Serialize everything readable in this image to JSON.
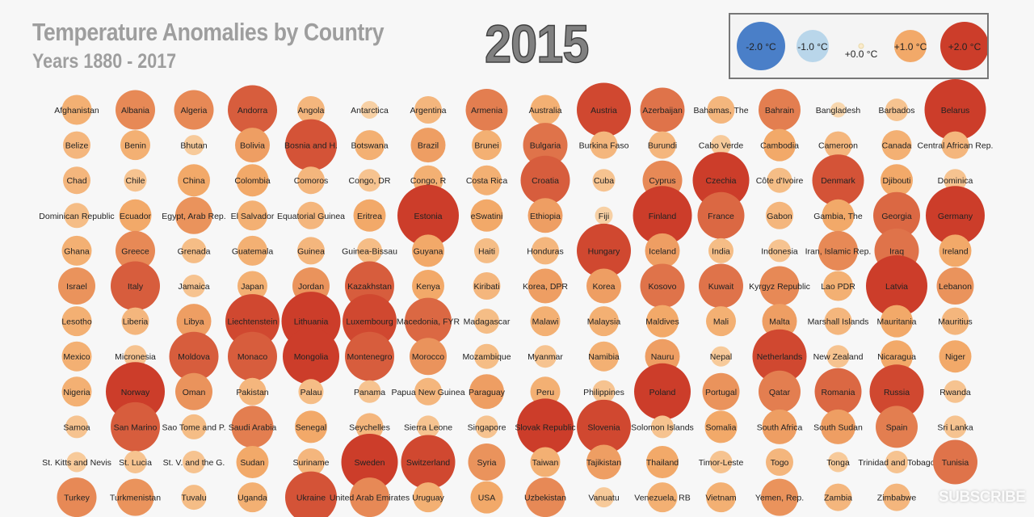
{
  "header": {
    "title": "Temperature Anomalies by Country",
    "subtitle": "Years 1880 - 2017",
    "year": "2015"
  },
  "overlay": {
    "subscribe": "SUBSCRIBE"
  },
  "chart_data": {
    "type": "scatter",
    "encoding": "bubble size and color = temperature anomaly (°C)",
    "title": "Temperature Anomalies by Country",
    "subtitle": "Years 1880 - 2017",
    "year": "2015",
    "color_scale": {
      "-2.0": "#4a7fc8",
      "-1.0": "#b9d6ea",
      "0.0": "#fbeacb",
      "1.0": "#f2a969",
      "2.0": "#cc3d2a"
    },
    "legend": [
      {
        "label": "-2.0 °C",
        "value": -2.0
      },
      {
        "label": "-1.0 °C",
        "value": -1.0
      },
      {
        "label": "+0.0 °C",
        "value": 0.0
      },
      {
        "label": "+1.0 °C",
        "value": 1.0
      },
      {
        "label": "+2.0 °C",
        "value": 2.0
      }
    ],
    "columns": 15,
    "countries": [
      {
        "name": "Afghanistan",
        "anomaly": 0.9
      },
      {
        "name": "Albania",
        "anomaly": 1.3
      },
      {
        "name": "Algeria",
        "anomaly": 1.3
      },
      {
        "name": "Andorra",
        "anomaly": 1.7
      },
      {
        "name": "Angola",
        "anomaly": 0.8
      },
      {
        "name": "Antarctica",
        "anomaly": 0.4
      },
      {
        "name": "Argentina",
        "anomaly": 0.8
      },
      {
        "name": "Armenia",
        "anomaly": 1.4
      },
      {
        "name": "Australia",
        "anomaly": 0.9
      },
      {
        "name": "Austria",
        "anomaly": 1.9
      },
      {
        "name": "Azerbaijan",
        "anomaly": 1.5
      },
      {
        "name": "Bahamas, The",
        "anomaly": 0.8
      },
      {
        "name": "Bahrain",
        "anomaly": 1.4
      },
      {
        "name": "Bangladesh",
        "anomaly": 0.3
      },
      {
        "name": "Barbados",
        "anomaly": 0.6
      },
      {
        "name": "Belarus",
        "anomaly": 2.2
      },
      {
        "name": "Belize",
        "anomaly": 0.8
      },
      {
        "name": "Benin",
        "anomaly": 0.9
      },
      {
        "name": "Bhutan",
        "anomaly": 0.5
      },
      {
        "name": "Bolivia",
        "anomaly": 1.1
      },
      {
        "name": "Bosnia and H.",
        "anomaly": 1.8
      },
      {
        "name": "Botswana",
        "anomaly": 0.9
      },
      {
        "name": "Brazil",
        "anomaly": 1.1
      },
      {
        "name": "Brunei",
        "anomaly": 0.9
      },
      {
        "name": "Bulgaria",
        "anomaly": 1.5
      },
      {
        "name": "Burkina Faso",
        "anomaly": 0.8
      },
      {
        "name": "Burundi",
        "anomaly": 0.8
      },
      {
        "name": "Cabo Verde",
        "anomaly": 0.5
      },
      {
        "name": "Cambodia",
        "anomaly": 1.0
      },
      {
        "name": "Cameroon",
        "anomaly": 0.8
      },
      {
        "name": "Canada",
        "anomaly": 0.9
      },
      {
        "name": "Central African Rep.",
        "anomaly": 0.8
      },
      {
        "name": "Chad",
        "anomaly": 0.8
      },
      {
        "name": "Chile",
        "anomaly": 0.6
      },
      {
        "name": "China",
        "anomaly": 1.0
      },
      {
        "name": "Colombia",
        "anomaly": 1.0
      },
      {
        "name": "Comoros",
        "anomaly": 0.8
      },
      {
        "name": "Congo, DR",
        "anomaly": 0.6
      },
      {
        "name": "Congo, R",
        "anomaly": 0.9
      },
      {
        "name": "Costa Rica",
        "anomaly": 0.9
      },
      {
        "name": "Croatia",
        "anomaly": 1.7
      },
      {
        "name": "Cuba",
        "anomaly": 0.6
      },
      {
        "name": "Cyprus",
        "anomaly": 1.3
      },
      {
        "name": "Czechia",
        "anomaly": 2.0
      },
      {
        "name": "Côte d'Ivoire",
        "anomaly": 0.7
      },
      {
        "name": "Denmark",
        "anomaly": 1.8
      },
      {
        "name": "Djibouti",
        "anomaly": 1.0
      },
      {
        "name": "Dominica",
        "anomaly": 0.6
      },
      {
        "name": "Dominican Republic",
        "anomaly": 0.7
      },
      {
        "name": "Ecuador",
        "anomaly": 1.0
      },
      {
        "name": "Egypt, Arab Rep.",
        "anomaly": 1.2
      },
      {
        "name": "El Salvador",
        "anomaly": 0.9
      },
      {
        "name": "Equatorial Guinea",
        "anomaly": 0.8
      },
      {
        "name": "Eritrea",
        "anomaly": 1.0
      },
      {
        "name": "Estonia",
        "anomaly": 2.2
      },
      {
        "name": "eSwatini",
        "anomaly": 1.0
      },
      {
        "name": "Ethiopia",
        "anomaly": 1.1
      },
      {
        "name": "Fiji",
        "anomaly": 0.4
      },
      {
        "name": "Finland",
        "anomaly": 2.1
      },
      {
        "name": "France",
        "anomaly": 1.6
      },
      {
        "name": "Gabon",
        "anomaly": 0.8
      },
      {
        "name": "Gambia, The",
        "anomaly": 1.0
      },
      {
        "name": "Georgia",
        "anomaly": 1.6
      },
      {
        "name": "Germany",
        "anomaly": 2.1
      },
      {
        "name": "Ghana",
        "anomaly": 0.9
      },
      {
        "name": "Greece",
        "anomaly": 1.3
      },
      {
        "name": "Grenada",
        "anomaly": 0.7
      },
      {
        "name": "Guatemala",
        "anomaly": 0.9
      },
      {
        "name": "Guinea",
        "anomaly": 0.8
      },
      {
        "name": "Guinea-Bissau",
        "anomaly": 0.7
      },
      {
        "name": "Guyana",
        "anomaly": 1.0
      },
      {
        "name": "Haiti",
        "anomaly": 0.7
      },
      {
        "name": "Honduras",
        "anomaly": 0.8
      },
      {
        "name": "Hungary",
        "anomaly": 1.9
      },
      {
        "name": "Iceland",
        "anomaly": 1.1
      },
      {
        "name": "India",
        "anomaly": 0.7
      },
      {
        "name": "Indonesia",
        "anomaly": 0.6
      },
      {
        "name": "Iran, Islamic Rep.",
        "anomaly": 1.3
      },
      {
        "name": "Iraq",
        "anomaly": 1.5
      },
      {
        "name": "Ireland",
        "anomaly": 1.0
      },
      {
        "name": "Israel",
        "anomaly": 1.2
      },
      {
        "name": "Italy",
        "anomaly": 1.7
      },
      {
        "name": "Jamaica",
        "anomaly": 0.6
      },
      {
        "name": "Japan",
        "anomaly": 0.9
      },
      {
        "name": "Jordan",
        "anomaly": 1.2
      },
      {
        "name": "Kazakhstan",
        "anomaly": 1.7
      },
      {
        "name": "Kenya",
        "anomaly": 1.0
      },
      {
        "name": "Kiribati",
        "anomaly": 0.8
      },
      {
        "name": "Korea, DPR",
        "anomaly": 1.1
      },
      {
        "name": "Korea",
        "anomaly": 1.1
      },
      {
        "name": "Kosovo",
        "anomaly": 1.5
      },
      {
        "name": "Kuwait",
        "anomaly": 1.5
      },
      {
        "name": "Kyrgyz Republic",
        "anomaly": 1.3
      },
      {
        "name": "Lao PDR",
        "anomaly": 0.9
      },
      {
        "name": "Latvia",
        "anomaly": 2.2
      },
      {
        "name": "Lebanon",
        "anomaly": 1.2
      },
      {
        "name": "Lesotho",
        "anomaly": 0.9
      },
      {
        "name": "Liberia",
        "anomaly": 0.8
      },
      {
        "name": "Libya",
        "anomaly": 1.1
      },
      {
        "name": "Liechtenstein",
        "anomaly": 1.9
      },
      {
        "name": "Lithuania",
        "anomaly": 2.1
      },
      {
        "name": "Luxembourg",
        "anomaly": 1.9
      },
      {
        "name": "Macedonia, FYR",
        "anomaly": 1.6
      },
      {
        "name": "Madagascar",
        "anomaly": 0.7
      },
      {
        "name": "Malawi",
        "anomaly": 0.9
      },
      {
        "name": "Malaysia",
        "anomaly": 0.9
      },
      {
        "name": "Maldives",
        "anomaly": 1.0
      },
      {
        "name": "Mali",
        "anomaly": 0.9
      },
      {
        "name": "Malta",
        "anomaly": 1.1
      },
      {
        "name": "Marshall Islands",
        "anomaly": 0.8
      },
      {
        "name": "Mauritania",
        "anomaly": 1.0
      },
      {
        "name": "Mauritius",
        "anomaly": 0.8
      },
      {
        "name": "Mexico",
        "anomaly": 0.9
      },
      {
        "name": "Micronesia",
        "anomaly": 0.6
      },
      {
        "name": "Moldova",
        "anomaly": 1.7
      },
      {
        "name": "Monaco",
        "anomaly": 1.7
      },
      {
        "name": "Mongolia",
        "anomaly": 2.0
      },
      {
        "name": "Montenegro",
        "anomaly": 1.7
      },
      {
        "name": "Morocco",
        "anomaly": 1.2
      },
      {
        "name": "Mozambique",
        "anomaly": 0.7
      },
      {
        "name": "Myanmar",
        "anomaly": 0.6
      },
      {
        "name": "Namibia",
        "anomaly": 0.9
      },
      {
        "name": "Nauru",
        "anomaly": 1.1
      },
      {
        "name": "Nepal",
        "anomaly": 0.5
      },
      {
        "name": "Netherlands",
        "anomaly": 1.9
      },
      {
        "name": "New Zealand",
        "anomaly": 0.6
      },
      {
        "name": "Nicaragua",
        "anomaly": 1.0
      },
      {
        "name": "Niger",
        "anomaly": 1.0
      },
      {
        "name": "Nigeria",
        "anomaly": 0.9
      },
      {
        "name": "Norway",
        "anomaly": 2.1
      },
      {
        "name": "Oman",
        "anomaly": 1.2
      },
      {
        "name": "Pakistan",
        "anomaly": 0.8
      },
      {
        "name": "Palau",
        "anomaly": 0.7
      },
      {
        "name": "Panama",
        "anomaly": 0.6
      },
      {
        "name": "Papua New Guinea",
        "anomaly": 0.8
      },
      {
        "name": "Paraguay",
        "anomaly": 1.1
      },
      {
        "name": "Peru",
        "anomaly": 0.9
      },
      {
        "name": "Philippines",
        "anomaly": 0.6
      },
      {
        "name": "Poland",
        "anomaly": 2.0
      },
      {
        "name": "Portugal",
        "anomaly": 1.2
      },
      {
        "name": "Qatar",
        "anomaly": 1.4
      },
      {
        "name": "Romania",
        "anomaly": 1.6
      },
      {
        "name": "Russia",
        "anomaly": 1.9
      },
      {
        "name": "Rwanda",
        "anomaly": 0.6
      },
      {
        "name": "Samoa",
        "anomaly": 0.6
      },
      {
        "name": "San Marino",
        "anomaly": 1.7
      },
      {
        "name": "Sao Tome and P.",
        "anomaly": 0.7
      },
      {
        "name": "Saudi Arabia",
        "anomaly": 1.4
      },
      {
        "name": "Senegal",
        "anomaly": 1.0
      },
      {
        "name": "Seychelles",
        "anomaly": 0.8
      },
      {
        "name": "Sierra Leone",
        "anomaly": 0.6
      },
      {
        "name": "Singapore",
        "anomaly": 0.6
      },
      {
        "name": "Slovak Republic",
        "anomaly": 2.0
      },
      {
        "name": "Slovenia",
        "anomaly": 1.9
      },
      {
        "name": "Solomon Islands",
        "anomaly": 0.6
      },
      {
        "name": "Somalia",
        "anomaly": 1.0
      },
      {
        "name": "South Africa",
        "anomaly": 1.1
      },
      {
        "name": "South Sudan",
        "anomaly": 1.1
      },
      {
        "name": "Spain",
        "anomaly": 1.4
      },
      {
        "name": "Sri Lanka",
        "anomaly": 0.6
      },
      {
        "name": "St. Kitts and Nevis",
        "anomaly": 0.5
      },
      {
        "name": "St. Lucia",
        "anomaly": 0.6
      },
      {
        "name": "St. V. and the G.",
        "anomaly": 0.6
      },
      {
        "name": "Sudan",
        "anomaly": 1.0
      },
      {
        "name": "Suriname",
        "anomaly": 0.8
      },
      {
        "name": "Sweden",
        "anomaly": 2.0
      },
      {
        "name": "Switzerland",
        "anomaly": 1.9
      },
      {
        "name": "Syria",
        "anomaly": 1.2
      },
      {
        "name": "Taiwan",
        "anomaly": 0.9
      },
      {
        "name": "Tajikistan",
        "anomaly": 1.1
      },
      {
        "name": "Thailand",
        "anomaly": 1.0
      },
      {
        "name": "Timor-Leste",
        "anomaly": 0.6
      },
      {
        "name": "Togo",
        "anomaly": 0.8
      },
      {
        "name": "Tonga",
        "anomaly": 0.5
      },
      {
        "name": "Trinidad and Tobago",
        "anomaly": 0.6
      },
      {
        "name": "Tunisia",
        "anomaly": 1.5
      },
      {
        "name": "Turkey",
        "anomaly": 1.3
      },
      {
        "name": "Turkmenistan",
        "anomaly": 1.2
      },
      {
        "name": "Tuvalu",
        "anomaly": 0.7
      },
      {
        "name": "Uganda",
        "anomaly": 0.9
      },
      {
        "name": "Ukraine",
        "anomaly": 1.8
      },
      {
        "name": "United Arab Emirates",
        "anomaly": 1.3
      },
      {
        "name": "Uruguay",
        "anomaly": 0.9
      },
      {
        "name": "USA",
        "anomaly": 1.0
      },
      {
        "name": "Uzbekistan",
        "anomaly": 1.3
      },
      {
        "name": "Vanuatu",
        "anomaly": 0.5
      },
      {
        "name": "Venezuela, RB",
        "anomaly": 0.9
      },
      {
        "name": "Vietnam",
        "anomaly": 0.9
      },
      {
        "name": "Yemen, Rep.",
        "anomaly": 1.2
      },
      {
        "name": "Zambia",
        "anomaly": 0.8
      },
      {
        "name": "Zimbabwe",
        "anomaly": 0.8
      }
    ]
  }
}
